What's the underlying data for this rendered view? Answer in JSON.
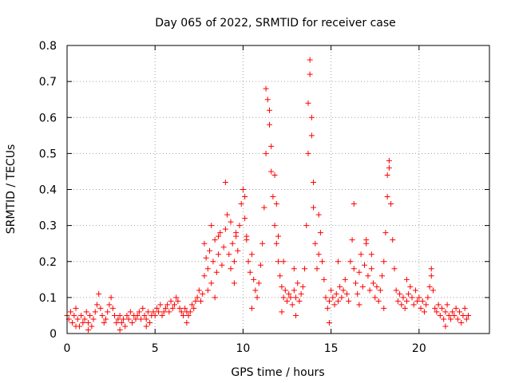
{
  "chart_data": {
    "type": "scatter",
    "title": "Day 065 of 2022, SRMTID for receiver case",
    "xlabel": "GPS time / hours",
    "ylabel": "SRMTID / TECUs",
    "xlim": [
      0,
      24
    ],
    "ylim": [
      0,
      0.8
    ],
    "x_ticks": [
      0,
      5,
      10,
      15,
      20
    ],
    "y_ticks": [
      0,
      0.1,
      0.2,
      0.3,
      0.4,
      0.5,
      0.6,
      0.7,
      0.8
    ],
    "x_tick_labels": [
      "0",
      "5",
      "10",
      "15",
      "20"
    ],
    "y_tick_labels": [
      "0",
      "0.1",
      "0.2",
      "0.3",
      "0.4",
      "0.5",
      "0.6",
      "0.7",
      "0.8"
    ],
    "grid": true,
    "marker": "plus",
    "series": [
      {
        "name": "SRMTID",
        "color": "#ff0000",
        "points": [
          [
            0.0,
            0.05
          ],
          [
            0.1,
            0.04
          ],
          [
            0.2,
            0.06
          ],
          [
            0.3,
            0.03
          ],
          [
            0.4,
            0.05
          ],
          [
            0.5,
            0.07
          ],
          [
            0.6,
            0.04
          ],
          [
            0.7,
            0.02
          ],
          [
            0.8,
            0.05
          ],
          [
            0.9,
            0.03
          ],
          [
            1.0,
            0.04
          ],
          [
            1.1,
            0.06
          ],
          [
            1.2,
            0.03
          ],
          [
            1.3,
            0.05
          ],
          [
            1.4,
            0.02
          ],
          [
            1.5,
            0.04
          ],
          [
            1.6,
            0.06
          ],
          [
            1.7,
            0.08
          ],
          [
            1.8,
            0.11
          ],
          [
            1.9,
            0.07
          ],
          [
            2.0,
            0.05
          ],
          [
            2.1,
            0.03
          ],
          [
            2.2,
            0.04
          ],
          [
            2.3,
            0.06
          ],
          [
            2.4,
            0.08
          ],
          [
            2.5,
            0.1
          ],
          [
            2.6,
            0.07
          ],
          [
            2.7,
            0.05
          ],
          [
            2.8,
            0.03
          ],
          [
            2.9,
            0.04
          ],
          [
            3.0,
            0.05
          ],
          [
            3.1,
            0.03
          ],
          [
            3.2,
            0.04
          ],
          [
            3.3,
            0.02
          ],
          [
            3.4,
            0.05
          ],
          [
            3.5,
            0.04
          ],
          [
            3.6,
            0.06
          ],
          [
            3.7,
            0.03
          ],
          [
            3.8,
            0.05
          ],
          [
            3.9,
            0.04
          ],
          [
            4.0,
            0.05
          ],
          [
            4.1,
            0.06
          ],
          [
            4.2,
            0.04
          ],
          [
            4.3,
            0.07
          ],
          [
            4.4,
            0.05
          ],
          [
            4.5,
            0.04
          ],
          [
            4.6,
            0.06
          ],
          [
            4.7,
            0.03
          ],
          [
            4.8,
            0.05
          ],
          [
            4.9,
            0.06
          ],
          [
            5.0,
            0.05
          ],
          [
            5.1,
            0.07
          ],
          [
            5.2,
            0.06
          ],
          [
            5.3,
            0.08
          ],
          [
            5.4,
            0.05
          ],
          [
            5.5,
            0.06
          ],
          [
            5.6,
            0.07
          ],
          [
            5.7,
            0.08
          ],
          [
            5.8,
            0.06
          ],
          [
            5.9,
            0.09
          ],
          [
            6.0,
            0.07
          ],
          [
            6.1,
            0.08
          ],
          [
            6.2,
            0.1
          ],
          [
            6.3,
            0.09
          ],
          [
            6.4,
            0.07
          ],
          [
            6.5,
            0.06
          ],
          [
            6.6,
            0.05
          ],
          [
            6.7,
            0.07
          ],
          [
            6.8,
            0.06
          ],
          [
            6.9,
            0.05
          ],
          [
            7.0,
            0.06
          ],
          [
            7.1,
            0.08
          ],
          [
            7.2,
            0.07
          ],
          [
            7.3,
            0.09
          ],
          [
            7.4,
            0.1
          ],
          [
            7.5,
            0.12
          ],
          [
            7.6,
            0.09
          ],
          [
            7.7,
            0.11
          ],
          [
            7.8,
            0.16
          ],
          [
            7.9,
            0.21
          ],
          [
            8.0,
            0.18
          ],
          [
            8.1,
            0.23
          ],
          [
            8.2,
            0.14
          ],
          [
            8.3,
            0.2
          ],
          [
            8.4,
            0.26
          ],
          [
            8.5,
            0.17
          ],
          [
            8.6,
            0.22
          ],
          [
            8.7,
            0.28
          ],
          [
            8.8,
            0.19
          ],
          [
            8.9,
            0.24
          ],
          [
            9.0,
            0.29
          ],
          [
            9.1,
            0.33
          ],
          [
            9.2,
            0.22
          ],
          [
            9.3,
            0.18
          ],
          [
            9.4,
            0.25
          ],
          [
            9.5,
            0.2
          ],
          [
            9.6,
            0.27
          ],
          [
            9.7,
            0.23
          ],
          [
            9.8,
            0.3
          ],
          [
            9.9,
            0.36
          ],
          [
            10.0,
            0.4
          ],
          [
            10.1,
            0.32
          ],
          [
            10.2,
            0.26
          ],
          [
            10.3,
            0.2
          ],
          [
            10.4,
            0.17
          ],
          [
            10.5,
            0.22
          ],
          [
            10.6,
            0.15
          ],
          [
            10.7,
            0.12
          ],
          [
            10.8,
            0.1
          ],
          [
            10.9,
            0.14
          ],
          [
            11.0,
            0.19
          ],
          [
            11.1,
            0.25
          ],
          [
            11.2,
            0.35
          ],
          [
            11.3,
            0.5
          ],
          [
            11.4,
            0.65
          ],
          [
            11.5,
            0.58
          ],
          [
            11.6,
            0.45
          ],
          [
            11.7,
            0.38
          ],
          [
            11.8,
            0.3
          ],
          [
            11.9,
            0.25
          ],
          [
            12.0,
            0.2
          ],
          [
            12.1,
            0.16
          ],
          [
            12.2,
            0.13
          ],
          [
            12.3,
            0.1
          ],
          [
            12.4,
            0.12
          ],
          [
            12.5,
            0.09
          ],
          [
            12.6,
            0.11
          ],
          [
            12.7,
            0.1
          ],
          [
            12.8,
            0.08
          ],
          [
            12.9,
            0.12
          ],
          [
            13.0,
            0.1
          ],
          [
            13.1,
            0.14
          ],
          [
            13.2,
            0.09
          ],
          [
            13.3,
            0.11
          ],
          [
            13.4,
            0.13
          ],
          [
            13.5,
            0.18
          ],
          [
            13.6,
            0.3
          ],
          [
            13.7,
            0.5
          ],
          [
            13.8,
            0.76
          ],
          [
            13.9,
            0.55
          ],
          [
            14.0,
            0.35
          ],
          [
            14.1,
            0.25
          ],
          [
            14.2,
            0.18
          ],
          [
            14.3,
            0.22
          ],
          [
            14.4,
            0.28
          ],
          [
            14.5,
            0.2
          ],
          [
            14.6,
            0.15
          ],
          [
            14.7,
            0.1
          ],
          [
            14.8,
            0.07
          ],
          [
            14.9,
            0.09
          ],
          [
            15.0,
            0.12
          ],
          [
            15.1,
            0.1
          ],
          [
            15.2,
            0.08
          ],
          [
            15.3,
            0.11
          ],
          [
            15.4,
            0.09
          ],
          [
            15.5,
            0.13
          ],
          [
            15.6,
            0.1
          ],
          [
            15.7,
            0.12
          ],
          [
            15.8,
            0.15
          ],
          [
            15.9,
            0.11
          ],
          [
            16.0,
            0.09
          ],
          [
            16.1,
            0.2
          ],
          [
            16.2,
            0.26
          ],
          [
            16.3,
            0.18
          ],
          [
            16.4,
            0.14
          ],
          [
            16.5,
            0.11
          ],
          [
            16.6,
            0.17
          ],
          [
            16.7,
            0.22
          ],
          [
            16.8,
            0.13
          ],
          [
            16.9,
            0.19
          ],
          [
            17.0,
            0.25
          ],
          [
            17.1,
            0.16
          ],
          [
            17.2,
            0.12
          ],
          [
            17.3,
            0.18
          ],
          [
            17.4,
            0.14
          ],
          [
            17.5,
            0.1
          ],
          [
            17.6,
            0.13
          ],
          [
            17.7,
            0.09
          ],
          [
            17.8,
            0.12
          ],
          [
            17.9,
            0.16
          ],
          [
            18.0,
            0.2
          ],
          [
            18.1,
            0.28
          ],
          [
            18.2,
            0.38
          ],
          [
            18.3,
            0.48
          ],
          [
            18.4,
            0.36
          ],
          [
            18.5,
            0.26
          ],
          [
            18.6,
            0.18
          ],
          [
            18.7,
            0.12
          ],
          [
            18.8,
            0.09
          ],
          [
            18.9,
            0.11
          ],
          [
            19.0,
            0.08
          ],
          [
            19.1,
            0.1
          ],
          [
            19.2,
            0.07
          ],
          [
            19.3,
            0.09
          ],
          [
            19.4,
            0.11
          ],
          [
            19.5,
            0.13
          ],
          [
            19.6,
            0.1
          ],
          [
            19.7,
            0.08
          ],
          [
            19.8,
            0.12
          ],
          [
            19.9,
            0.09
          ],
          [
            20.0,
            0.1
          ],
          [
            20.1,
            0.07
          ],
          [
            20.2,
            0.09
          ],
          [
            20.3,
            0.06
          ],
          [
            20.4,
            0.08
          ],
          [
            20.5,
            0.1
          ],
          [
            20.6,
            0.13
          ],
          [
            20.7,
            0.18
          ],
          [
            20.8,
            0.12
          ],
          [
            20.9,
            0.07
          ],
          [
            21.0,
            0.06
          ],
          [
            21.1,
            0.08
          ],
          [
            21.2,
            0.05
          ],
          [
            21.3,
            0.07
          ],
          [
            21.4,
            0.04
          ],
          [
            21.5,
            0.06
          ],
          [
            21.6,
            0.08
          ],
          [
            21.7,
            0.05
          ],
          [
            21.8,
            0.04
          ],
          [
            21.9,
            0.06
          ],
          [
            22.0,
            0.05
          ],
          [
            22.1,
            0.07
          ],
          [
            22.2,
            0.04
          ],
          [
            22.3,
            0.06
          ],
          [
            22.4,
            0.03
          ],
          [
            22.5,
            0.05
          ],
          [
            22.6,
            0.07
          ],
          [
            22.7,
            0.04
          ],
          [
            22.8,
            0.05
          ],
          [
            9.0,
            0.42
          ],
          [
            9.3,
            0.31
          ],
          [
            10.1,
            0.38
          ],
          [
            11.3,
            0.68
          ],
          [
            11.5,
            0.62
          ],
          [
            11.6,
            0.52
          ],
          [
            11.8,
            0.44
          ],
          [
            11.9,
            0.36
          ],
          [
            13.7,
            0.64
          ],
          [
            13.8,
            0.72
          ],
          [
            13.9,
            0.6
          ],
          [
            14.0,
            0.42
          ],
          [
            14.3,
            0.33
          ],
          [
            16.3,
            0.36
          ],
          [
            18.2,
            0.44
          ],
          [
            18.3,
            0.46
          ],
          [
            7.8,
            0.25
          ],
          [
            8.2,
            0.3
          ],
          [
            8.6,
            0.27
          ],
          [
            9.6,
            0.28
          ],
          [
            10.2,
            0.27
          ],
          [
            12.0,
            0.27
          ],
          [
            12.3,
            0.2
          ],
          [
            12.9,
            0.18
          ],
          [
            15.4,
            0.2
          ],
          [
            17.0,
            0.26
          ],
          [
            17.3,
            0.22
          ],
          [
            19.3,
            0.15
          ],
          [
            20.7,
            0.16
          ],
          [
            8.0,
            0.12
          ],
          [
            8.4,
            0.1
          ],
          [
            9.5,
            0.14
          ],
          [
            10.5,
            0.07
          ],
          [
            12.2,
            0.06
          ],
          [
            13.0,
            0.05
          ],
          [
            14.9,
            0.03
          ],
          [
            16.6,
            0.08
          ],
          [
            18.0,
            0.07
          ],
          [
            21.5,
            0.02
          ],
          [
            0.5,
            0.02
          ],
          [
            1.2,
            0.01
          ],
          [
            3.0,
            0.01
          ],
          [
            4.5,
            0.02
          ],
          [
            6.8,
            0.03
          ]
        ]
      }
    ]
  }
}
